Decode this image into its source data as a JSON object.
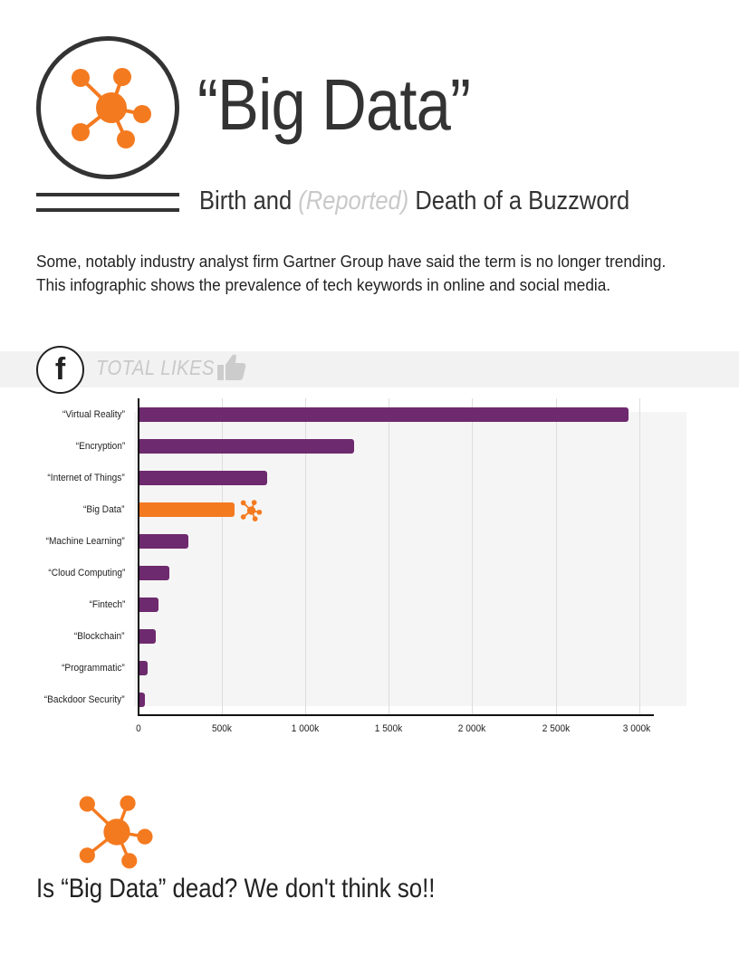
{
  "header": {
    "title": "“Big Data”",
    "subtitle_pre": "Birth and ",
    "subtitle_muted": "(Reported)",
    "subtitle_post": " Death of a Buzzword"
  },
  "intro": {
    "line1": "Some, notably industry analyst firm Gartner Group have said the term is no longer trending.",
    "line2": "This infographic shows the prevalence of tech keywords in online and social media."
  },
  "likes_section": {
    "icon_letter": "f",
    "label": "TOTAL LIKES"
  },
  "colors": {
    "accent": "#f47a20",
    "bar": "#6e2a6e",
    "text": "#333333",
    "muted": "#c9c9c9",
    "band": "#f2f2f2"
  },
  "chart_data": {
    "type": "bar",
    "orientation": "horizontal",
    "title": "TOTAL LIKES",
    "xlabel": "",
    "ylabel": "",
    "categories": [
      "“Virtual Reality”",
      "“Encryption”",
      "“Internet of Things”",
      "“Big Data”",
      "“Machine Learning”",
      "“Cloud Computing”",
      "“Fintech”",
      "“Blockchain”",
      "“Programmatic”",
      "“Backdoor Security”"
    ],
    "values": [
      2935000,
      1290000,
      773000,
      573000,
      297000,
      184000,
      119000,
      103000,
      54000,
      36000
    ],
    "highlight": "“Big Data”",
    "xlim": [
      0,
      3000000
    ],
    "xticks": [
      0,
      500000,
      1000000,
      1500000,
      2000000,
      2500000,
      3000000
    ],
    "xtick_labels": [
      "0",
      "500k",
      "1 000k",
      "1 500k",
      "2 000k",
      "2 500k",
      "3 000k"
    ],
    "grid": true,
    "legend": "none"
  },
  "chart": {
    "labels": [
      "“Virtual Reality”",
      "“Encryption”",
      "“Internet of Things”",
      "“Big Data”",
      "“Machine Learning”",
      "“Cloud Computing”",
      "“Fintech”",
      "“Blockchain”",
      "“Programmatic”",
      "“Backdoor Security”"
    ],
    "ticks": [
      "0",
      "500k",
      "1 000k",
      "1 500k",
      "2 000k",
      "2 500k",
      "3 000k"
    ]
  },
  "closing": {
    "text": "Is “Big Data” dead? We don't think so!!"
  }
}
